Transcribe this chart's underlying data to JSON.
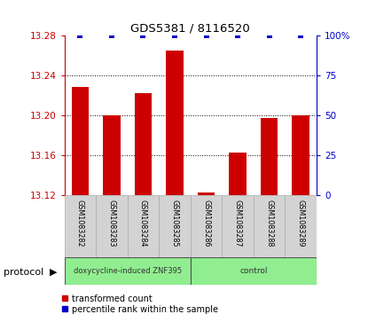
{
  "title": "GDS5381 / 8116520",
  "samples": [
    "GSM1083282",
    "GSM1083283",
    "GSM1083284",
    "GSM1083285",
    "GSM1083286",
    "GSM1083287",
    "GSM1083288",
    "GSM1083289"
  ],
  "transformed_counts": [
    13.228,
    13.2,
    13.222,
    13.265,
    13.122,
    13.162,
    13.197,
    13.2
  ],
  "percentile_ranks": [
    100,
    100,
    100,
    100,
    100,
    100,
    100,
    100
  ],
  "ylim_left": [
    13.12,
    13.28
  ],
  "ylim_right": [
    0,
    100
  ],
  "yticks_left": [
    13.12,
    13.16,
    13.2,
    13.24,
    13.28
  ],
  "yticks_right": [
    0,
    25,
    50,
    75,
    100
  ],
  "bar_color": "#cc0000",
  "dot_color": "#0000cc",
  "groups": [
    {
      "label": "doxycycline-induced ZNF395",
      "n_samples": 4,
      "color": "#90ee90"
    },
    {
      "label": "control",
      "n_samples": 4,
      "color": "#90ee90"
    }
  ],
  "protocol_label": "protocol",
  "legend_bar_label": "transformed count",
  "legend_dot_label": "percentile rank within the sample",
  "tick_label_color_left": "#cc0000",
  "tick_label_color_right": "#0000cc",
  "bar_bottom": 13.12,
  "bar_width": 0.55,
  "sample_box_color": "#d3d3d3",
  "sample_box_edgecolor": "#aaaaaa"
}
